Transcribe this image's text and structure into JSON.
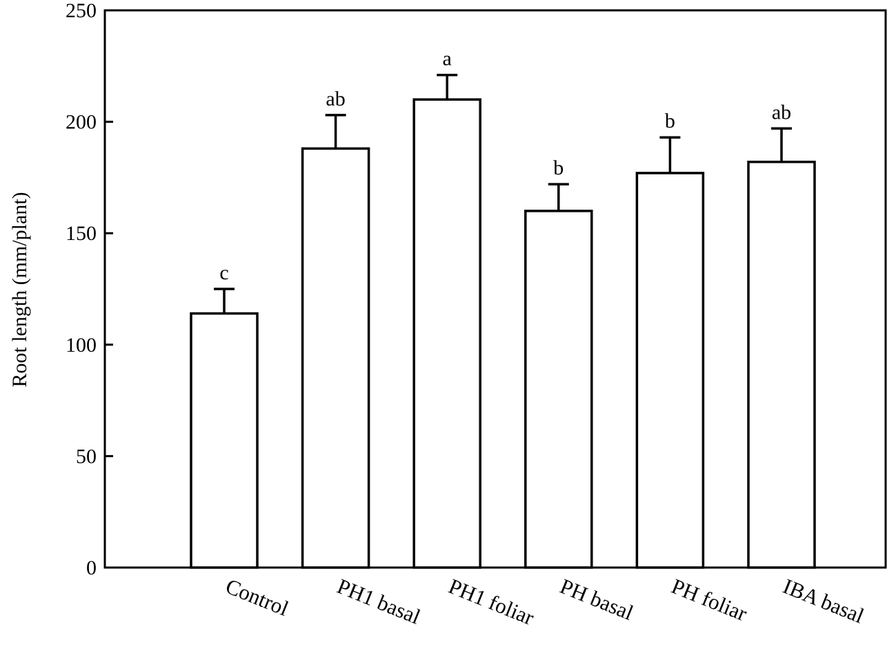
{
  "chart_data": {
    "type": "bar",
    "title": "",
    "xlabel": "",
    "ylabel": "Root length (mm/plant)",
    "ylim": [
      0,
      250
    ],
    "yticks": [
      0,
      50,
      100,
      150,
      200,
      250
    ],
    "grid": false,
    "legend": "none",
    "categories": [
      "Control",
      "PH1 basal",
      "PH1 foliar",
      "PH basal",
      "PH foliar",
      "IBA basal"
    ],
    "values": [
      114,
      188,
      210,
      160,
      177,
      182
    ],
    "errors": [
      11,
      15,
      11,
      12,
      16,
      15
    ],
    "significance": [
      "c",
      "ab",
      "a",
      "b",
      "b",
      "ab"
    ],
    "colors": {
      "bar_fill": "#ffffff",
      "bar_stroke": "#000000",
      "axis": "#000000"
    }
  }
}
